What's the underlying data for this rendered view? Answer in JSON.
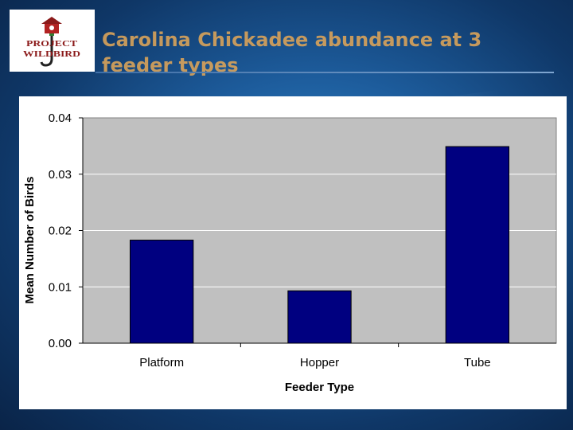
{
  "slide": {
    "title": "Carolina Chickadee abundance at 3 feeder types"
  },
  "logo": {
    "line1": "PROJECT",
    "line2": "WILDBIRD",
    "icon": "birdhouse-icon"
  },
  "colors": {
    "bar_fill": "#000080",
    "plot_bg": "#c0c0c0",
    "title": "#d9a35a"
  },
  "chart_data": {
    "type": "bar",
    "title": "",
    "xlabel": "Feeder Type",
    "ylabel": "Mean Number of Birds",
    "categories": [
      "Platform",
      "Hopper",
      "Tube"
    ],
    "values": [
      0.0183,
      0.0093,
      0.0349
    ],
    "ylim": [
      0,
      0.04
    ],
    "yticks": [
      "0.00",
      "0.01",
      "0.02",
      "0.03",
      "0.04"
    ],
    "grid": true,
    "legend": "none"
  }
}
